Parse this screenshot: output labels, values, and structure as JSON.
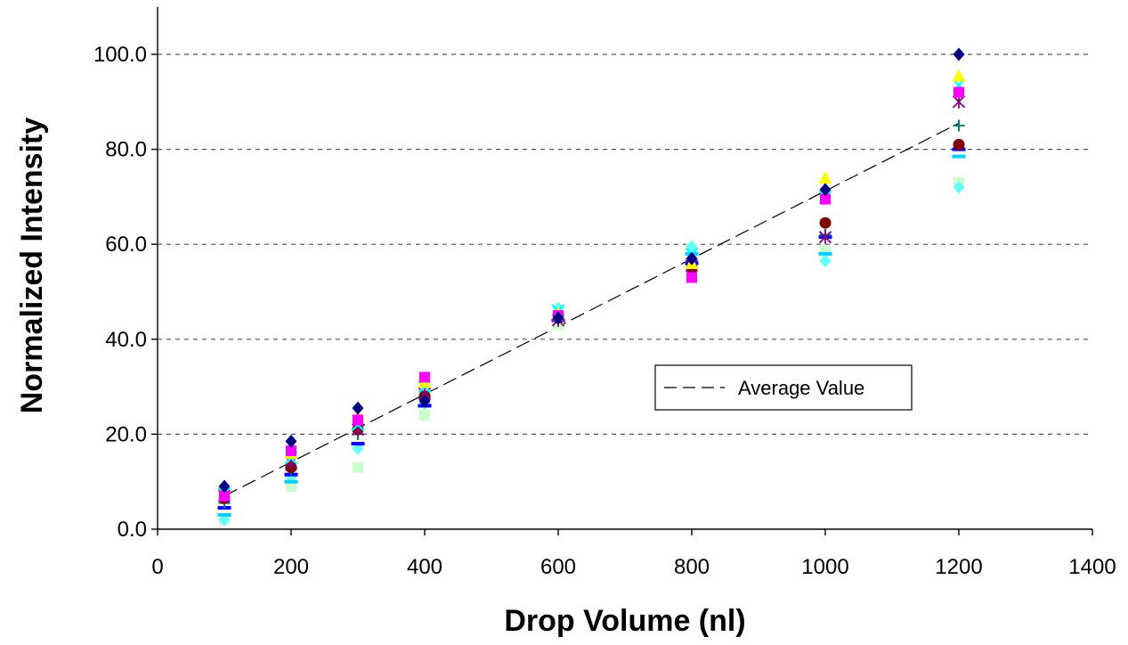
{
  "chart_data": {
    "type": "scatter",
    "title": "",
    "xlabel": "Drop Volume (nl)",
    "ylabel": "Normalized Intensity",
    "xlim": [
      0,
      1400
    ],
    "ylim": [
      0,
      110
    ],
    "x_ticks": [
      0,
      200,
      400,
      600,
      800,
      1000,
      1200,
      1400
    ],
    "y_ticks": [
      0,
      20,
      40,
      60,
      80,
      100
    ],
    "x_tick_labels": [
      "0",
      "200",
      "400",
      "600",
      "800",
      "1000",
      "1200",
      "1400"
    ],
    "y_tick_labels": [
      "0.0",
      "20.0",
      "40.0",
      "60.0",
      "80.0",
      "100.0"
    ],
    "grid": "horizontal dashed",
    "legend": {
      "placement": "center-right",
      "entries": [
        "Average Value"
      ]
    },
    "x": [
      100,
      200,
      300,
      400,
      600,
      800,
      1000,
      1200
    ],
    "series": [
      {
        "marker": "diamond",
        "color": "#000080",
        "values": [
          9.0,
          18.5,
          25.5,
          27.0,
          44.5,
          57.0,
          71.5,
          100.0
        ]
      },
      {
        "marker": "square",
        "color": "#ff00ff",
        "values": [
          7.0,
          16.5,
          23.0,
          32.0,
          45.0,
          53.0,
          69.5,
          92.0
        ]
      },
      {
        "marker": "triangle",
        "color": "#ffff00",
        "values": [
          8.0,
          16.0,
          24.0,
          31.0,
          45.5,
          56.0,
          74.0,
          95.5
        ]
      },
      {
        "marker": "x",
        "color": "#00ffff",
        "values": [
          7.5,
          15.0,
          22.0,
          30.0,
          46.0,
          58.0,
          70.0,
          93.5
        ]
      },
      {
        "marker": "star",
        "color": "#800080",
        "values": [
          7.0,
          14.0,
          21.0,
          28.5,
          44.0,
          55.5,
          61.5,
          90.0
        ]
      },
      {
        "marker": "circle",
        "color": "#800000",
        "values": [
          6.5,
          13.0,
          21.0,
          28.0,
          44.5,
          55.0,
          64.5,
          81.0
        ]
      },
      {
        "marker": "plus",
        "color": "#008080",
        "values": [
          5.5,
          12.5,
          20.0,
          27.5,
          44.5,
          56.5,
          62.0,
          85.0
        ]
      },
      {
        "marker": "dash",
        "color": "#0000ff",
        "values": [
          4.5,
          11.5,
          18.0,
          26.0,
          44.0,
          56.0,
          61.5,
          80.0
        ]
      },
      {
        "marker": "dash",
        "color": "#00ccff",
        "values": [
          3.0,
          10.0,
          18.0,
          26.0,
          44.0,
          58.0,
          58.0,
          78.5
        ]
      },
      {
        "marker": "diamond",
        "color": "#66ffff",
        "values": [
          2.0,
          11.0,
          17.0,
          26.5,
          46.5,
          59.5,
          56.5,
          72.0
        ]
      },
      {
        "marker": "square",
        "color": "#ccffcc",
        "values": [
          2.0,
          9.0,
          13.0,
          24.0,
          43.0,
          59.0,
          58.5,
          73.0
        ]
      }
    ],
    "average": {
      "name": "Average Value",
      "style": "dashed",
      "color": "#000000",
      "x": [
        100,
        1200
      ],
      "y": [
        7.0,
        85.5
      ]
    }
  }
}
